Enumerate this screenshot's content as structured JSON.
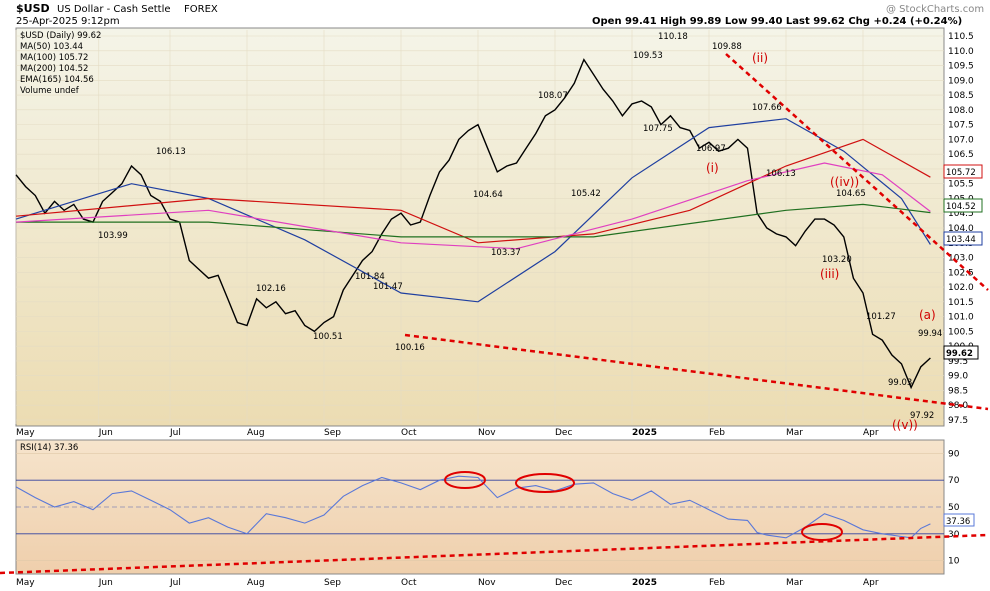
{
  "header": {
    "symbol": "$USD",
    "name": "US Dollar - Cash Settle",
    "exchange": "FOREX",
    "date": "25-Apr-2025 9:12pm",
    "quote": "Open 99.41   High 99.89   Low 99.40   Last 99.62   Chg +0.24 (+0.24%)",
    "watermark": "@ StockCharts.com"
  },
  "legend": [
    {
      "text": "$USD (Daily) 99.62",
      "color": "#000000"
    },
    {
      "text": "MA(50) 103.44",
      "color": "#1f3fa0"
    },
    {
      "text": "MA(100) 105.72",
      "color": "#d01010"
    },
    {
      "text": "MA(200) 104.52",
      "color": "#207020"
    },
    {
      "text": "EMA(165) 104.56",
      "color": "#e040c0"
    },
    {
      "text": "Volume undef",
      "color": "#a0a040"
    }
  ],
  "rsi_legend": "RSI(14) 37.36",
  "colors": {
    "price_bg_top": "#f4f4e8",
    "price_bg_bottom": "#ece0b6",
    "rsi_bg": "#f2d8b8",
    "price": "#000000",
    "ma50": "#1f3fa0",
    "ma100": "#d01010",
    "ma200": "#207020",
    "ema165": "#e040c0",
    "rsi": "#5a78d8",
    "annotation": "#e00000"
  },
  "chart_data": [
    {
      "type": "line",
      "title": "$USD (Daily)",
      "ylim": [
        97.5,
        110.5
      ],
      "y_ticks": [
        97.5,
        98.0,
        98.5,
        99.0,
        99.5,
        100.0,
        100.5,
        101.0,
        101.5,
        102.0,
        102.5,
        103.0,
        103.5,
        104.0,
        104.5,
        105.0,
        105.5,
        106.0,
        106.5,
        107.0,
        107.5,
        108.0,
        108.5,
        109.0,
        109.5,
        110.0,
        110.5
      ],
      "x_tick_labels": [
        "May",
        "Jun",
        "Jul",
        "Aug",
        "Sep",
        "Oct",
        "Nov",
        "Dec",
        "2025",
        "Feb",
        "Mar",
        "Apr"
      ],
      "series": [
        {
          "name": "$USD",
          "points": [
            [
              0,
              105.8
            ],
            [
              5,
              105.4
            ],
            [
              10,
              105.1
            ],
            [
              15,
              104.5
            ],
            [
              20,
              104.9
            ],
            [
              25,
              104.6
            ],
            [
              30,
              104.8
            ],
            [
              35,
              104.3
            ],
            [
              40,
              104.2
            ],
            [
              45,
              104.9
            ],
            [
              50,
              105.2
            ],
            [
              55,
              105.5
            ],
            [
              60,
              106.1
            ],
            [
              65,
              105.8
            ],
            [
              70,
              105.1
            ],
            [
              75,
              104.9
            ],
            [
              80,
              104.3
            ],
            [
              85,
              104.2
            ],
            [
              90,
              102.9
            ],
            [
              95,
              102.6
            ],
            [
              100,
              102.3
            ],
            [
              105,
              102.4
            ],
            [
              110,
              101.6
            ],
            [
              115,
              100.8
            ],
            [
              120,
              100.7
            ],
            [
              125,
              101.6
            ],
            [
              130,
              101.3
            ],
            [
              135,
              101.5
            ],
            [
              140,
              101.1
            ],
            [
              145,
              101.2
            ],
            [
              150,
              100.7
            ],
            [
              155,
              100.5
            ],
            [
              160,
              100.8
            ],
            [
              165,
              101.0
            ],
            [
              170,
              101.9
            ],
            [
              175,
              102.4
            ],
            [
              180,
              102.9
            ],
            [
              185,
              103.2
            ],
            [
              190,
              103.8
            ],
            [
              195,
              104.3
            ],
            [
              200,
              104.5
            ],
            [
              205,
              104.1
            ],
            [
              210,
              104.2
            ],
            [
              215,
              105.1
            ],
            [
              220,
              105.9
            ],
            [
              225,
              106.3
            ],
            [
              230,
              107.0
            ],
            [
              235,
              107.3
            ],
            [
              240,
              107.5
            ],
            [
              245,
              106.7
            ],
            [
              250,
              105.9
            ],
            [
              255,
              106.1
            ],
            [
              260,
              106.2
            ],
            [
              265,
              106.7
            ],
            [
              270,
              107.2
            ],
            [
              275,
              107.8
            ],
            [
              280,
              108.0
            ],
            [
              285,
              108.4
            ],
            [
              290,
              108.9
            ],
            [
              295,
              109.7
            ],
            [
              300,
              109.2
            ],
            [
              305,
              108.7
            ],
            [
              310,
              108.3
            ],
            [
              315,
              107.8
            ],
            [
              320,
              108.2
            ],
            [
              325,
              108.3
            ],
            [
              330,
              108.1
            ],
            [
              335,
              107.5
            ],
            [
              340,
              107.8
            ],
            [
              345,
              107.4
            ],
            [
              350,
              107.3
            ],
            [
              355,
              106.7
            ],
            [
              360,
              106.9
            ],
            [
              365,
              106.6
            ],
            [
              370,
              106.7
            ],
            [
              375,
              107.0
            ],
            [
              380,
              106.7
            ],
            [
              385,
              104.5
            ],
            [
              390,
              104.0
            ],
            [
              395,
              103.8
            ],
            [
              400,
              103.7
            ],
            [
              405,
              103.4
            ],
            [
              410,
              103.9
            ],
            [
              415,
              104.3
            ],
            [
              420,
              104.3
            ],
            [
              425,
              104.1
            ],
            [
              430,
              103.7
            ],
            [
              435,
              102.3
            ],
            [
              440,
              101.8
            ],
            [
              445,
              100.4
            ],
            [
              450,
              100.2
            ],
            [
              455,
              99.7
            ],
            [
              460,
              99.4
            ],
            [
              465,
              98.6
            ],
            [
              470,
              99.3
            ],
            [
              475,
              99.6
            ]
          ]
        },
        {
          "name": "MA(50)",
          "points": [
            [
              0,
              104.3
            ],
            [
              60,
              105.5
            ],
            [
              100,
              105.0
            ],
            [
              150,
              103.6
            ],
            [
              200,
              101.8
            ],
            [
              240,
              101.5
            ],
            [
              280,
              103.2
            ],
            [
              320,
              105.7
            ],
            [
              360,
              107.4
            ],
            [
              400,
              107.7
            ],
            [
              430,
              106.6
            ],
            [
              460,
              105.0
            ],
            [
              475,
              103.44
            ]
          ]
        },
        {
          "name": "MA(100)",
          "points": [
            [
              0,
              104.4
            ],
            [
              100,
              105.0
            ],
            [
              200,
              104.6
            ],
            [
              240,
              103.5
            ],
            [
              300,
              103.8
            ],
            [
              350,
              104.6
            ],
            [
              400,
              106.1
            ],
            [
              440,
              107.0
            ],
            [
              475,
              105.72
            ]
          ]
        },
        {
          "name": "MA(200)",
          "points": [
            [
              0,
              104.2
            ],
            [
              100,
              104.2
            ],
            [
              200,
              103.7
            ],
            [
              300,
              103.7
            ],
            [
              400,
              104.6
            ],
            [
              440,
              104.8
            ],
            [
              475,
              104.52
            ]
          ]
        },
        {
          "name": "EMA(165)",
          "points": [
            [
              0,
              104.2
            ],
            [
              100,
              104.6
            ],
            [
              200,
              103.5
            ],
            [
              260,
              103.3
            ],
            [
              320,
              104.3
            ],
            [
              380,
              105.6
            ],
            [
              420,
              106.2
            ],
            [
              450,
              105.8
            ],
            [
              475,
              104.56
            ]
          ]
        }
      ],
      "annotations": [
        "108.07",
        "109.53",
        "110.18",
        "109.88",
        "107.75",
        "106.97",
        "107.66",
        "106.13",
        "104.65",
        "103.20",
        "101.27",
        "99.94",
        "99.03",
        "97.92",
        "106.13",
        "103.99",
        "104.64",
        "105.42",
        "103.37",
        "102.16",
        "101.84",
        "101.47",
        "100.51",
        "100.16"
      ],
      "wave_labels": [
        "(ii)",
        "(i)",
        "((iv))",
        "(iii)",
        "(a)",
        "((v))"
      ],
      "last_price_label": "99.62",
      "ma_value_labels": [
        "105.72",
        "104.52",
        "103.44"
      ]
    },
    {
      "type": "line",
      "title": "RSI(14)",
      "ylim": [
        0,
        100
      ],
      "y_ticks": [
        10,
        30,
        50,
        70,
        90
      ],
      "x_tick_labels": [
        "May",
        "Jun",
        "Jul",
        "Aug",
        "Sep",
        "Oct",
        "Nov",
        "Dec",
        "2025",
        "Feb",
        "Mar",
        "Apr"
      ],
      "series": [
        {
          "name": "RSI(14)",
          "points": [
            [
              0,
              65
            ],
            [
              10,
              57
            ],
            [
              20,
              50
            ],
            [
              30,
              54
            ],
            [
              40,
              48
            ],
            [
              50,
              60
            ],
            [
              60,
              62
            ],
            [
              70,
              55
            ],
            [
              80,
              48
            ],
            [
              90,
              38
            ],
            [
              100,
              42
            ],
            [
              110,
              35
            ],
            [
              120,
              30
            ],
            [
              130,
              45
            ],
            [
              140,
              42
            ],
            [
              150,
              38
            ],
            [
              160,
              44
            ],
            [
              170,
              58
            ],
            [
              180,
              66
            ],
            [
              190,
              72
            ],
            [
              200,
              68
            ],
            [
              210,
              63
            ],
            [
              220,
              70
            ],
            [
              230,
              73
            ],
            [
              240,
              72
            ],
            [
              250,
              57
            ],
            [
              260,
              64
            ],
            [
              270,
              66
            ],
            [
              280,
              62
            ],
            [
              290,
              67
            ],
            [
              300,
              68
            ],
            [
              310,
              60
            ],
            [
              320,
              55
            ],
            [
              330,
              62
            ],
            [
              340,
              52
            ],
            [
              350,
              55
            ],
            [
              360,
              48
            ],
            [
              370,
              41
            ],
            [
              380,
              40
            ],
            [
              385,
              31
            ],
            [
              390,
              29
            ],
            [
              400,
              27
            ],
            [
              410,
              35
            ],
            [
              420,
              45
            ],
            [
              430,
              40
            ],
            [
              440,
              33
            ],
            [
              450,
              30
            ],
            [
              460,
              28
            ],
            [
              465,
              27
            ],
            [
              470,
              34
            ],
            [
              475,
              37.36
            ]
          ]
        }
      ],
      "last_value_label": "37.36"
    }
  ]
}
